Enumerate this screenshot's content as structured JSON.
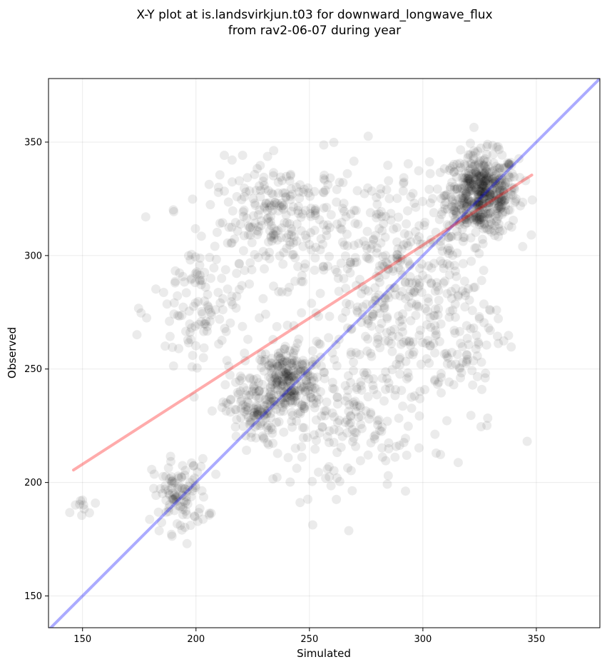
{
  "chart_data": {
    "type": "scatter",
    "title": "X-Y plot at is.landsvirkjun.t03 for downward_longwave_flux",
    "subtitle": "from rav2-06-07 during year",
    "xlabel": "Simulated",
    "ylabel": "Observed",
    "xlim": [
      135,
      378
    ],
    "ylim": [
      136,
      378
    ],
    "xticks": [
      150,
      200,
      250,
      300,
      350
    ],
    "yticks": [
      150,
      200,
      250,
      300,
      350
    ],
    "xtick_labels": [
      "150",
      "200",
      "250",
      "300",
      "350"
    ],
    "ytick_labels": [
      "150",
      "200",
      "250",
      "300",
      "350"
    ],
    "grid": true,
    "point_color": "#000000",
    "point_opacity": 0.08,
    "clusters": [
      {
        "cx": 326,
        "cy": 327,
        "sx": 8,
        "sy": 9,
        "n": 520
      },
      {
        "cx": 240,
        "cy": 245,
        "sx": 7,
        "sy": 8,
        "n": 230
      },
      {
        "cx": 225,
        "cy": 232,
        "sx": 6,
        "sy": 8,
        "n": 120
      },
      {
        "cx": 193,
        "cy": 194,
        "sx": 6,
        "sy": 8,
        "n": 110
      },
      {
        "cx": 238,
        "cy": 315,
        "sx": 16,
        "sy": 13,
        "n": 260
      },
      {
        "cx": 203,
        "cy": 276,
        "sx": 11,
        "sy": 18,
        "n": 120
      },
      {
        "cx": 283,
        "cy": 295,
        "sx": 15,
        "sy": 22,
        "n": 260
      },
      {
        "cx": 312,
        "cy": 270,
        "sx": 12,
        "sy": 24,
        "n": 170
      },
      {
        "cx": 260,
        "cy": 230,
        "sx": 14,
        "sy": 18,
        "n": 140
      },
      {
        "cx": 280,
        "cy": 245,
        "sx": 12,
        "sy": 22,
        "n": 90
      },
      {
        "cx": 150,
        "cy": 190,
        "sx": 3,
        "sy": 3,
        "n": 10
      }
    ],
    "reference_lines": [
      {
        "name": "",
        "x": [
          135,
          378
        ],
        "y": [
          135,
          378
        ],
        "color": "#0000ff",
        "opacity": 0.33
      },
      {
        "name": "",
        "x": [
          146,
          348
        ],
        "y": [
          205.5,
          335.5
        ],
        "color": "#ff0000",
        "opacity": 0.33
      }
    ]
  }
}
